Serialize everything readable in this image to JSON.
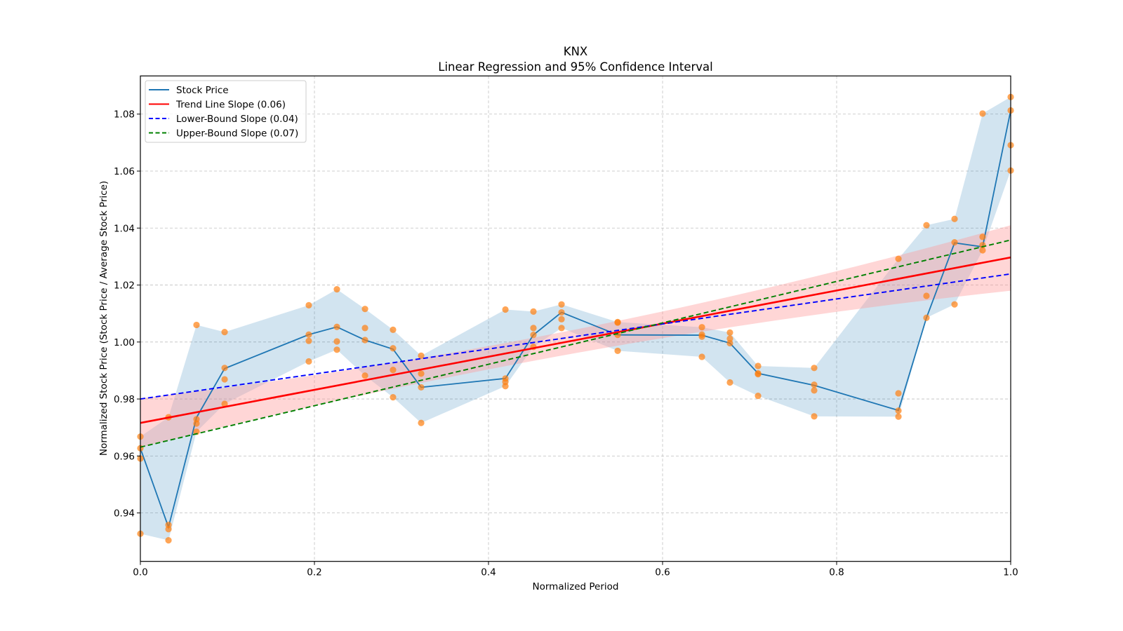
{
  "chart_data": {
    "type": "line",
    "title": "KNX",
    "subtitle": "Linear Regression and 95% Confidence Interval",
    "xlabel": "Normalized Period",
    "ylabel": "Normalized Stock Price (Stock Price / Average Stock Price)",
    "xlim": [
      0.0,
      1.0
    ],
    "ylim": [
      0.923,
      1.0934
    ],
    "xticks": [
      0.0,
      0.2,
      0.4,
      0.6,
      0.8,
      1.0
    ],
    "xtick_labels": [
      "0.0",
      "0.2",
      "0.4",
      "0.6",
      "0.8",
      "1.0"
    ],
    "yticks": [
      0.94,
      0.96,
      0.98,
      1.0,
      1.02,
      1.04,
      1.06,
      1.08
    ],
    "ytick_labels": [
      "0.94",
      "0.96",
      "0.98",
      "1.00",
      "1.02",
      "1.04",
      "1.06",
      "1.08"
    ],
    "grid": true,
    "legend_position": "top-left",
    "legend": [
      {
        "label": "Stock Price",
        "color": "#1f77b4",
        "style": "solid"
      },
      {
        "label": "Trend Line Slope (0.06)",
        "color": "#ff0000",
        "style": "solid"
      },
      {
        "label": "Lower-Bound Slope (0.04)",
        "color": "#0000ff",
        "style": "dashed"
      },
      {
        "label": "Upper-Bound Slope (0.07)",
        "color": "#008000",
        "style": "dashed"
      }
    ],
    "stock_price": {
      "x": [
        0.0,
        0.0323,
        0.0645,
        0.0968,
        0.1935,
        0.2258,
        0.2581,
        0.2903,
        0.3226,
        0.4194,
        0.4516,
        0.4839,
        0.5484,
        0.6452,
        0.6774,
        0.7097,
        0.7742,
        0.871,
        0.9032,
        0.9355,
        0.9677,
        1.0
      ],
      "y": [
        0.9627,
        0.935,
        0.9735,
        0.9907,
        1.0026,
        1.0053,
        1.0007,
        0.9975,
        0.9841,
        0.9872,
        1.0025,
        1.0104,
        1.0025,
        1.0024,
        0.9996,
        0.989,
        0.9848,
        0.976,
        1.0085,
        1.0348,
        1.0334,
        1.0813
      ]
    },
    "scatter_points": [
      {
        "x": 0.0,
        "y": [
          0.9668,
          0.9627,
          0.9591,
          0.9327
        ]
      },
      {
        "x": 0.0323,
        "y": [
          0.9736,
          0.9358,
          0.9343,
          0.9304
        ]
      },
      {
        "x": 0.0645,
        "y": [
          1.006,
          0.9729,
          0.9714,
          0.9685
        ]
      },
      {
        "x": 0.0968,
        "y": [
          1.0035,
          0.9909,
          0.9869,
          0.9783
        ]
      },
      {
        "x": 0.1935,
        "y": [
          1.0129,
          1.0026,
          1.0004,
          0.9932
        ]
      },
      {
        "x": 0.2258,
        "y": [
          1.0185,
          1.0053,
          1.0002,
          0.9973
        ]
      },
      {
        "x": 0.2581,
        "y": [
          1.0116,
          1.0049,
          1.0007,
          0.9882
        ]
      },
      {
        "x": 0.2903,
        "y": [
          1.0043,
          0.9978,
          0.9902,
          0.9806
        ]
      },
      {
        "x": 0.3226,
        "y": [
          0.9952,
          0.9889,
          0.9841,
          0.9716
        ]
      },
      {
        "x": 0.4194,
        "y": [
          1.0114,
          0.9872,
          0.986,
          0.9845
        ]
      },
      {
        "x": 0.4516,
        "y": [
          1.0107,
          1.0049,
          1.0025,
          0.9983
        ]
      },
      {
        "x": 0.4839,
        "y": [
          1.0132,
          1.0104,
          1.008,
          1.0049
        ]
      },
      {
        "x": 0.5484,
        "y": [
          1.007,
          1.0068,
          1.0025,
          0.9969
        ]
      },
      {
        "x": 0.6452,
        "y": [
          1.0052,
          1.0026,
          1.0019,
          0.9948
        ]
      },
      {
        "x": 0.6774,
        "y": [
          1.0033,
          1.0012,
          0.9996,
          0.9858
        ]
      },
      {
        "x": 0.7097,
        "y": [
          0.9916,
          0.989,
          0.9887,
          0.9811
        ]
      },
      {
        "x": 0.7742,
        "y": [
          0.9909,
          0.985,
          0.983,
          0.9739
        ]
      },
      {
        "x": 0.871,
        "y": [
          1.0292,
          0.982,
          0.9759,
          0.9738
        ]
      },
      {
        "x": 0.9032,
        "y": [
          1.041,
          1.0162,
          1.0085
        ]
      },
      {
        "x": 0.9355,
        "y": [
          1.0432,
          1.035,
          1.0132
        ]
      },
      {
        "x": 0.9677,
        "y": [
          1.0802,
          1.0369,
          1.034,
          1.0322
        ]
      },
      {
        "x": 1.0,
        "y": [
          1.086,
          1.0813,
          1.0691,
          1.0602
        ]
      }
    ],
    "trend_line": {
      "x": [
        0.0,
        1.0
      ],
      "y": [
        0.9716,
        1.0297
      ],
      "slope": 0.06
    },
    "lower_bound_line": {
      "x": [
        0.0,
        1.0
      ],
      "y": [
        0.98,
        1.0239
      ],
      "slope": 0.04
    },
    "upper_bound_line": {
      "x": [
        0.0,
        1.0
      ],
      "y": [
        0.9631,
        1.0358
      ],
      "slope": 0.07
    },
    "confidence_band": {
      "x": [
        0.0,
        0.55,
        1.0
      ],
      "lower": [
        0.963,
        0.9988,
        1.018
      ],
      "upper": [
        0.9802,
        1.0075,
        1.041
      ]
    },
    "colors": {
      "stock_line": "#1f77b4",
      "stock_band": "#1f77b4",
      "points": "#ff7f0e",
      "trend": "#ff0000",
      "trend_band": "#ff9999",
      "lower": "#0000ff",
      "upper": "#008000"
    }
  }
}
